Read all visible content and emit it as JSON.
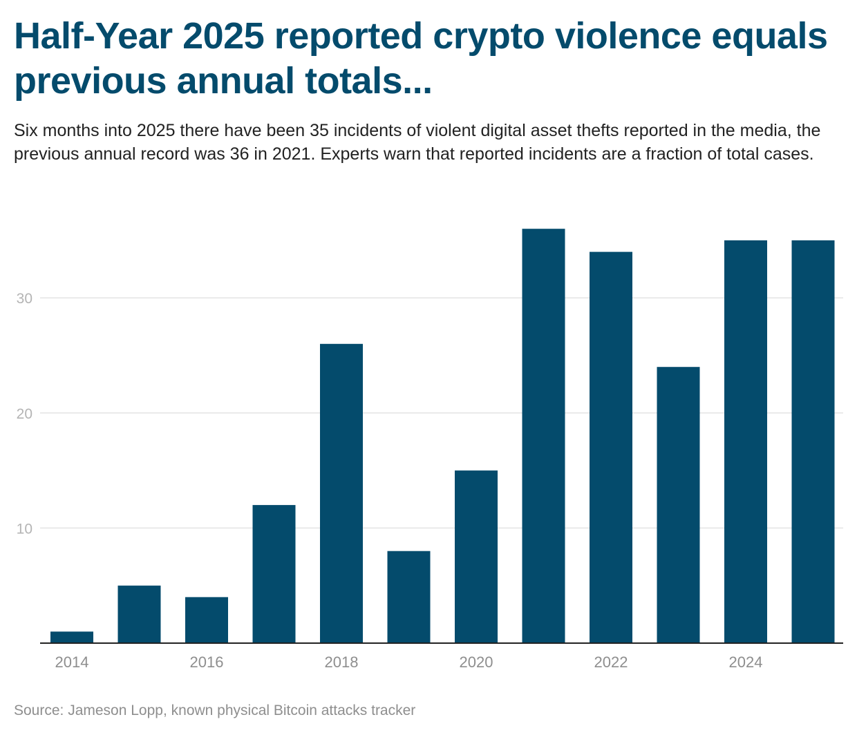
{
  "title": "Half-Year 2025 reported crypto violence equals previous annual totals...",
  "subtitle": "Six months into 2025 there have been 35 incidents of violent digital asset thefts reported in the media, the previous annual record was 36 in 2021. Experts warn that reported incidents are a fraction of total cases.",
  "source": "Source: Jameson Lopp, known physical Bitcoin attacks tracker",
  "colors": {
    "bar": "#044b6c",
    "title": "#044b6c",
    "grid": "#e3e3e3",
    "axis_text": "#8e8e8e",
    "tick_text": "#b4b4b4"
  },
  "chart_data": {
    "type": "bar",
    "categories": [
      "2014",
      "2015",
      "2016",
      "2017",
      "2018",
      "2019",
      "2020",
      "2021",
      "2022",
      "2023",
      "2024",
      "2025"
    ],
    "values": [
      1,
      5,
      4,
      12,
      26,
      8,
      15,
      36,
      34,
      24,
      35,
      35
    ],
    "x_tick_labels": [
      "2014",
      "2016",
      "2018",
      "2020",
      "2022",
      "2024"
    ],
    "y_ticks": [
      10,
      20,
      30
    ],
    "ylim": [
      0,
      38
    ],
    "grid": true,
    "legend": "none",
    "xlabel": "",
    "ylabel": ""
  }
}
